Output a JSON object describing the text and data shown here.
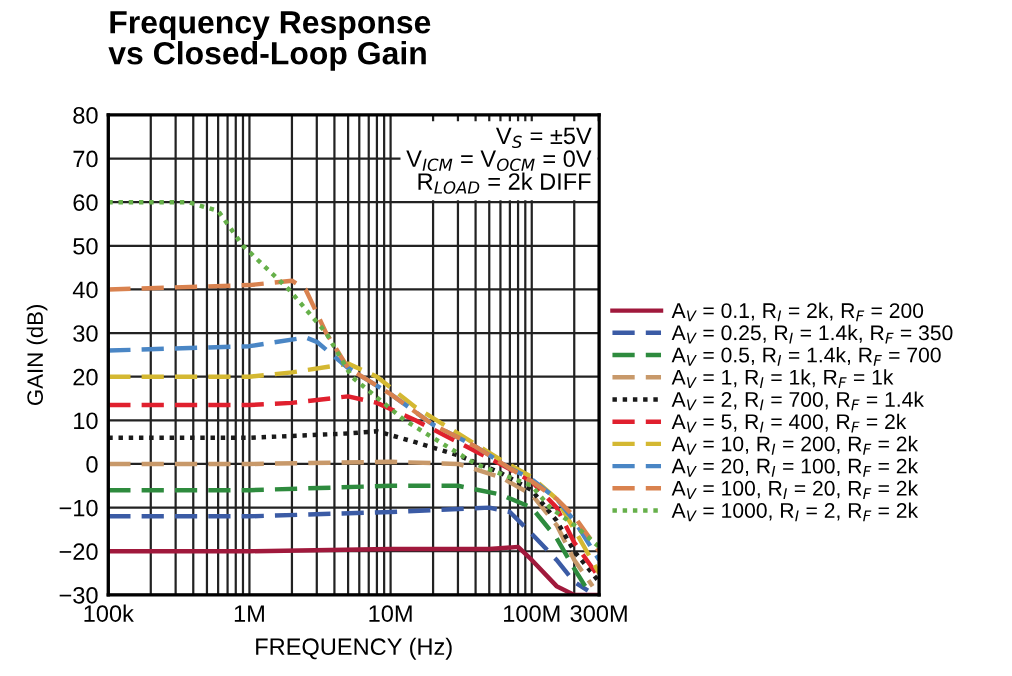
{
  "chart_data": {
    "type": "line",
    "title": "Frequency Response\nvs Closed-Loop Gain",
    "xlabel": "FREQUENCY (Hz)",
    "ylabel": "GAIN (dB)",
    "annotations": [
      "V$_{S}$ = ±5V\nV$_{ICM}$ = V$_{OCM}$ = 0V\nR$_{LOAD}$ = 2k DIFF"
    ],
    "log": "x",
    "grid": true,
    "legend": "right",
    "xlim": [
      100000,
      300000000
    ],
    "ylim": [
      -30,
      80
    ],
    "xticks": [
      {
        "value": 100000,
        "label": "100k"
      },
      {
        "value": 200000,
        "label": null
      },
      {
        "value": 300000,
        "label": null
      },
      {
        "value": 400000,
        "label": null
      },
      {
        "value": 500000,
        "label": null
      },
      {
        "value": 600000,
        "label": null
      },
      {
        "value": 700000,
        "label": null
      },
      {
        "value": 800000,
        "label": null
      },
      {
        "value": 900000,
        "label": null
      },
      {
        "value": 1000000,
        "label": "1M"
      },
      {
        "value": 2000000,
        "label": null
      },
      {
        "value": 3000000,
        "label": null
      },
      {
        "value": 4000000,
        "label": null
      },
      {
        "value": 5000000,
        "label": null
      },
      {
        "value": 6000000,
        "label": null
      },
      {
        "value": 7000000,
        "label": null
      },
      {
        "value": 8000000,
        "label": null
      },
      {
        "value": 9000000,
        "label": null
      },
      {
        "value": 10000000,
        "label": "10M"
      },
      {
        "value": 20000000,
        "label": null
      },
      {
        "value": 30000000,
        "label": null
      },
      {
        "value": 40000000,
        "label": null
      },
      {
        "value": 50000000,
        "label": null
      },
      {
        "value": 60000000,
        "label": null
      },
      {
        "value": 70000000,
        "label": null
      },
      {
        "value": 80000000,
        "label": null
      },
      {
        "value": 90000000,
        "label": null
      },
      {
        "value": 100000000,
        "label": "100M"
      },
      {
        "value": 200000000,
        "label": null
      },
      {
        "value": 300000000,
        "label": "300M"
      }
    ],
    "yticks": [
      -30,
      -20,
      -10,
      0,
      10,
      20,
      30,
      40,
      50,
      60,
      70,
      80
    ],
    "series": [
      {
        "name": "A$_{V}$ = 0.1, R$_{I}$ = 2k, R$_{F}$ = 200",
        "color": "#a0193c",
        "line_style": "solid",
        "x": [
          100000,
          1000000,
          10000000,
          50000000,
          80000000,
          100000000,
          150000000,
          200000000,
          300000000
        ],
        "values": [
          -20,
          -20,
          -19.5,
          -19.5,
          -19,
          -22,
          -28,
          -30,
          -30
        ]
      },
      {
        "name": "A$_{V}$ = 0.25, R$_{I}$ = 1.4k, R$_{F}$ = 350",
        "color": "#3b5ba5",
        "line_style": "dashed",
        "x": [
          100000,
          1000000,
          10000000,
          50000000,
          70000000,
          100000000,
          150000000,
          200000000,
          250000000
        ],
        "values": [
          -12,
          -12,
          -11,
          -10,
          -11,
          -16,
          -22,
          -27,
          -29
        ]
      },
      {
        "name": "A$_{V}$ = 0.5, R$_{I}$ = 1.4k, R$_{F}$ = 700",
        "color": "#2e8b3e",
        "line_style": "dashed",
        "x": [
          100000,
          1000000,
          10000000,
          30000000,
          60000000,
          100000000,
          150000000,
          200000000,
          250000000
        ],
        "values": [
          -6,
          -6,
          -5,
          -5,
          -7,
          -10,
          -17,
          -24,
          -29
        ]
      },
      {
        "name": "A$_{V}$ = 1, R$_{I}$ = 1k, R$_{F}$ = 1k",
        "color": "#c8996a",
        "line_style": "dashed",
        "x": [
          100000,
          1000000,
          10000000,
          30000000,
          60000000,
          100000000,
          150000000,
          200000000,
          270000000
        ],
        "values": [
          0,
          0,
          0.5,
          0,
          -3,
          -7,
          -14,
          -22,
          -28
        ]
      },
      {
        "name": "A$_{V}$ = 2, R$_{I}$ = 700, R$_{F}$ = 1.4k",
        "color": "#1a1a1a",
        "line_style": "dotted",
        "x": [
          100000,
          1000000,
          5000000,
          8000000,
          15000000,
          30000000,
          60000000,
          100000000,
          150000000,
          200000000,
          300000000
        ],
        "values": [
          6,
          6,
          7,
          7.5,
          5,
          2,
          -2,
          -6,
          -13,
          -20,
          -27
        ]
      },
      {
        "name": "A$_{V}$ = 5, R$_{I}$ = 400, R$_{F}$ = 2k",
        "color": "#e0202e",
        "line_style": "dashed",
        "x": [
          100000,
          1000000,
          2000000,
          5000000,
          8000000,
          15000000,
          30000000,
          60000000,
          100000000,
          150000000,
          200000000,
          300000000
        ],
        "values": [
          13.5,
          13.5,
          14,
          15.5,
          14,
          10,
          5,
          0,
          -4,
          -10,
          -18,
          -26
        ]
      },
      {
        "name": "A$_{V}$ = 10, R$_{I}$ = 200, R$_{F}$ = 2k",
        "color": "#d4b832",
        "line_style": "dashed",
        "x": [
          100000,
          1000000,
          2000000,
          5000000,
          8000000,
          15000000,
          30000000,
          60000000,
          100000000,
          150000000,
          200000000,
          300000000
        ],
        "values": [
          20,
          20,
          21,
          23,
          20,
          13,
          7,
          1,
          -3,
          -8,
          -15,
          -25
        ]
      },
      {
        "name": "A$_{V}$ = 20, R$_{I}$ = 100, R$_{F}$ = 2k",
        "color": "#4a86c5",
        "line_style": "dashed",
        "x": [
          100000,
          1000000,
          2500000,
          3000000,
          5000000,
          10000000,
          20000000,
          40000000,
          70000000,
          100000000,
          150000000,
          200000000,
          300000000
        ],
        "values": [
          26,
          27,
          29,
          28,
          22,
          16,
          9,
          4,
          -1,
          -3.5,
          -8,
          -13,
          -22
        ]
      },
      {
        "name": "A$_{V}$ = 100, R$_{I}$ = 20, R$_{F}$ = 2k",
        "color": "#d9824f",
        "line_style": "dashed",
        "x": [
          100000,
          1000000,
          2000000,
          2500000,
          3500000,
          5000000,
          10000000,
          20000000,
          40000000,
          70000000,
          100000000,
          150000000,
          200000000,
          300000000
        ],
        "values": [
          40,
          41,
          42,
          40,
          30,
          22,
          16,
          9,
          4,
          -1,
          -4,
          -8,
          -12,
          -20
        ]
      },
      {
        "name": "A$_{V}$ = 1000, R$_{I}$ = 2, R$_{F}$ = 2k",
        "color": "#66b04a",
        "line_style": "dotted",
        "x": [
          100000,
          370000,
          600000,
          900000,
          1900000,
          3500000,
          5300000,
          12600000,
          40000000,
          100000000,
          135000000,
          200000000,
          300000000
        ],
        "values": [
          60,
          60,
          58,
          50,
          40,
          30,
          20,
          10,
          0,
          -5,
          -10,
          -14,
          -19
        ]
      }
    ]
  }
}
